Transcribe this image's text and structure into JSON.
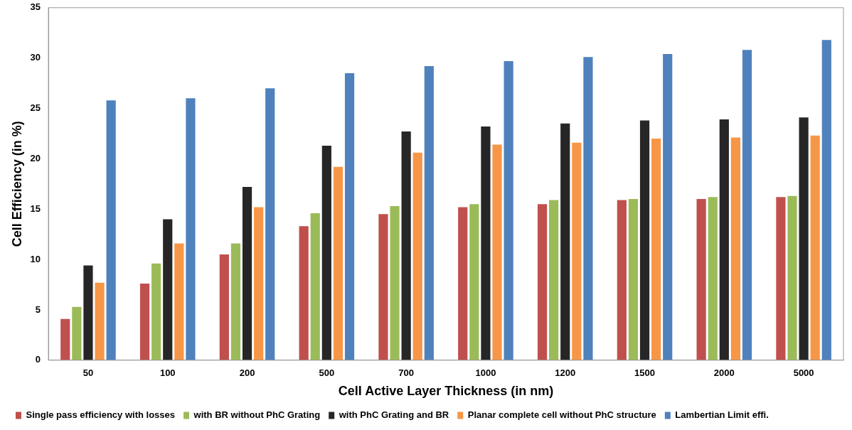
{
  "chart_data": {
    "type": "bar",
    "xlabel": "Cell Active Layer Thickness (in nm)",
    "ylabel": "Cell Efficiency (in %)",
    "categories": [
      "50",
      "100",
      "200",
      "500",
      "700",
      "1000",
      "1200",
      "1500",
      "2000",
      "5000"
    ],
    "series": [
      {
        "name": "Single pass efficiency with losses",
        "color": "#c0504d",
        "values": [
          4.1,
          7.6,
          10.5,
          13.3,
          14.5,
          15.2,
          15.5,
          15.9,
          16.0,
          16.2
        ]
      },
      {
        "name": "with BR without PhC Grating",
        "color": "#9bbb59",
        "values": [
          5.3,
          9.6,
          11.6,
          14.6,
          15.3,
          15.5,
          15.9,
          16.0,
          16.2,
          16.3
        ]
      },
      {
        "name": "with PhC Grating and BR",
        "color": "#262626",
        "values": [
          9.4,
          14.0,
          17.2,
          21.3,
          22.7,
          23.2,
          23.5,
          23.8,
          23.9,
          24.1
        ]
      },
      {
        "name": "Planar complete cell without PhC structure",
        "color": "#f79646",
        "values": [
          7.7,
          11.6,
          15.2,
          19.2,
          20.6,
          21.4,
          21.6,
          22.0,
          22.1,
          22.3
        ]
      },
      {
        "name": "Lambertian Limit effi.",
        "color": "#4f81bd",
        "values": [
          25.8,
          26.0,
          27.0,
          28.5,
          29.2,
          29.7,
          30.1,
          30.4,
          30.8,
          31.8
        ]
      }
    ],
    "ylim": [
      0,
      35
    ],
    "yticks": [
      0,
      5,
      10,
      15,
      20,
      25,
      30,
      35
    ],
    "grid": false,
    "legend": "bottom"
  }
}
